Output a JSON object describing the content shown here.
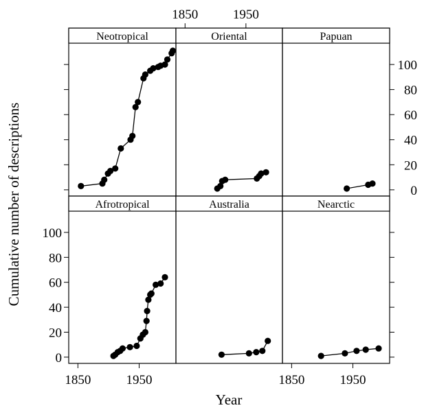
{
  "chart_data": {
    "type": "scatter",
    "layout": "lattice 3 columns x 2 rows",
    "xlabel": "Year",
    "ylabel": "Cumulative number of descriptions",
    "xlim": [
      1835,
      2010
    ],
    "ylim": [
      -5,
      117
    ],
    "x_ticks": [
      1850,
      1950
    ],
    "y_ticks": [
      0,
      20,
      40,
      60,
      80,
      100
    ],
    "point_color": "#000000",
    "line_color": "#000000",
    "panels": [
      {
        "title": "Neotropical",
        "x": [
          1855,
          1890,
          1893,
          1899,
          1903,
          1911,
          1920,
          1936,
          1939,
          1944,
          1948,
          1957,
          1960,
          1968,
          1973,
          1981,
          1985,
          1992,
          1996,
          2003,
          2005
        ],
        "y": [
          3,
          5,
          8,
          13,
          15,
          17,
          33,
          40,
          43,
          66,
          70,
          89,
          92,
          95,
          97,
          98,
          99,
          100,
          104,
          109,
          111
        ]
      },
      {
        "title": "Oriental",
        "x": [
          1903,
          1908,
          1911,
          1916,
          1968,
          1972,
          1975,
          1983
        ],
        "y": [
          1,
          3,
          7,
          8,
          9,
          11,
          13,
          14
        ]
      },
      {
        "title": "Papuan",
        "x": [
          1940,
          1975,
          1982
        ],
        "y": [
          1,
          4,
          5
        ]
      },
      {
        "title": "Afrotropical",
        "x": [
          1908,
          1911,
          1915,
          1919,
          1923,
          1935,
          1946,
          1952,
          1956,
          1960,
          1962,
          1963,
          1965,
          1968,
          1970,
          1977,
          1985,
          1992
        ],
        "y": [
          1,
          2,
          4,
          5,
          7,
          8,
          9,
          15,
          18,
          20,
          29,
          37,
          46,
          50,
          51,
          58,
          59,
          64
        ]
      },
      {
        "title": "Australia",
        "x": [
          1910,
          1955,
          1967,
          1977,
          1986
        ],
        "y": [
          2,
          3,
          4,
          5,
          13
        ]
      },
      {
        "title": "Nearctic",
        "x": [
          1898,
          1937,
          1956,
          1971,
          1992
        ],
        "y": [
          1,
          3,
          5,
          6,
          7
        ]
      }
    ]
  }
}
